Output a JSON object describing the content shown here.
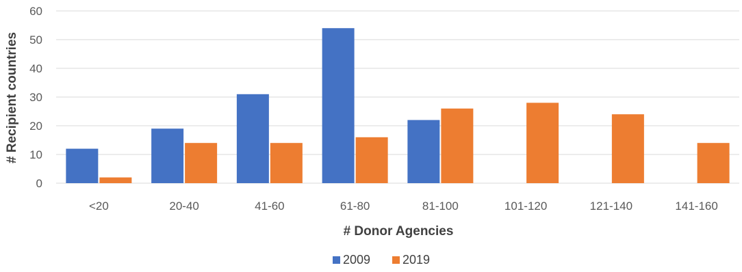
{
  "chart_data": {
    "type": "bar",
    "title": "",
    "xlabel": "# Donor Agencies",
    "ylabel": "# Recipient countries",
    "categories": [
      "<20",
      "20-40",
      "41-60",
      "61-80",
      "81-100",
      "101-120",
      "121-140",
      "141-160"
    ],
    "series": [
      {
        "name": "2009",
        "color": "#4472c4",
        "values": [
          12,
          19,
          31,
          54,
          22,
          null,
          null,
          null
        ]
      },
      {
        "name": "2019",
        "color": "#ed7d31",
        "values": [
          2,
          14,
          14,
          16,
          26,
          28,
          24,
          14
        ]
      }
    ],
    "ylim": [
      0,
      60
    ],
    "yticks": [
      "0",
      "10",
      "20",
      "30",
      "40",
      "50",
      "60"
    ],
    "grid": true,
    "legend_position": "bottom"
  }
}
